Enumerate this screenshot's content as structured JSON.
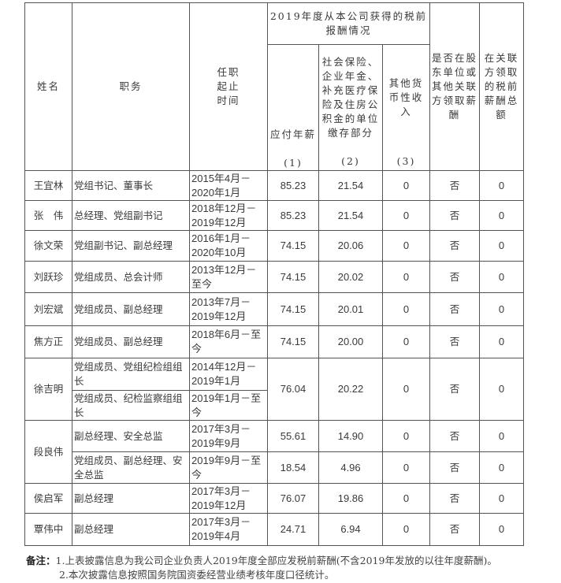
{
  "header": {
    "name": "姓名",
    "position": "职务",
    "term": "任职起止时间",
    "group": "2019年度从本公司获得的税前报酬情况",
    "salary": "应付年薪",
    "salary_no": "(1)",
    "insurance": "社会保险、企业年金、补充医疗保险及住房公积金的单位缴存部分",
    "insurance_no": "(2)",
    "other": "其他货币性收入",
    "other_no": "(3)",
    "related": "是否在股东单位或其他关联方领取薪酬",
    "related_total": "在关联方领取的税前薪酬总额"
  },
  "rows": [
    {
      "name": "王宜林",
      "position": "党组书记、董事长",
      "term": "2015年4月－2020年1月",
      "salary": "85.23",
      "insurance": "21.54",
      "other": "0",
      "related": "否",
      "total": "0"
    },
    {
      "name": "张　伟",
      "position": "总经理、党组副书记",
      "term": "2018年12月－2019年12月",
      "salary": "85.23",
      "insurance": "21.54",
      "other": "0",
      "related": "否",
      "total": "0"
    },
    {
      "name": "徐文荣",
      "position": "党组副书记、副总经理",
      "term": "2016年1月－2020年10月",
      "salary": "74.15",
      "insurance": "20.06",
      "other": "0",
      "related": "否",
      "total": "0"
    },
    {
      "name": "刘跃珍",
      "position": "党组成员、总会计师",
      "term": "2013年12月－至今",
      "salary": "74.15",
      "insurance": "20.02",
      "other": "0",
      "related": "否",
      "total": "0"
    },
    {
      "name": "刘宏斌",
      "position": "党组成员、副总经理",
      "term": "2013年7月－2019年12月",
      "salary": "74.15",
      "insurance": "20.01",
      "other": "0",
      "related": "否",
      "total": "0"
    },
    {
      "name": "焦方正",
      "position": "党组成员、副总经理",
      "term": "2018年6月－至今",
      "salary": "74.15",
      "insurance": "20.00",
      "other": "0",
      "related": "否",
      "total": "0"
    }
  ],
  "xu": {
    "name": "徐吉明",
    "position1": "党组成员、党组纪检组组长",
    "term1": "2014年12月－2019年1月",
    "position2": "党组成员、纪检监察组组长",
    "term2": "2019年1月－至今",
    "salary": "76.04",
    "insurance": "20.22",
    "other": "0",
    "related": "否",
    "total": "0"
  },
  "duan": {
    "name": "段良伟",
    "sub": [
      {
        "position": "副总经理、安全总监",
        "term": "2017年3月－2019年9月",
        "salary": "55.61",
        "insurance": "14.90",
        "other": "0",
        "related": "否",
        "total": "0"
      },
      {
        "position": "党组成员、副总经理、安全总监",
        "term": "2019年9月－至今",
        "salary": "18.54",
        "insurance": "4.96",
        "other": "0",
        "related": "否",
        "total": "0"
      }
    ]
  },
  "rows2": [
    {
      "name": "侯启军",
      "position": "副总经理",
      "term": "2017年3月－2019年12月",
      "salary": "76.07",
      "insurance": "19.86",
      "other": "0",
      "related": "否",
      "total": "0"
    },
    {
      "name": "覃伟中",
      "position": "副总经理",
      "term": "2017年3月－2019年4月",
      "salary": "24.71",
      "insurance": "6.94",
      "other": "0",
      "related": "否",
      "total": "0"
    }
  ],
  "notes": {
    "label": "备注：",
    "line1": "1.上表披露信息为我公司企业负责人2019年度全部应发税前薪酬(不含2019年发放的以往年度薪酬)。",
    "line2": "2.本次披露信息按照国务院国资委经营业绩考核年度口径统计。"
  }
}
